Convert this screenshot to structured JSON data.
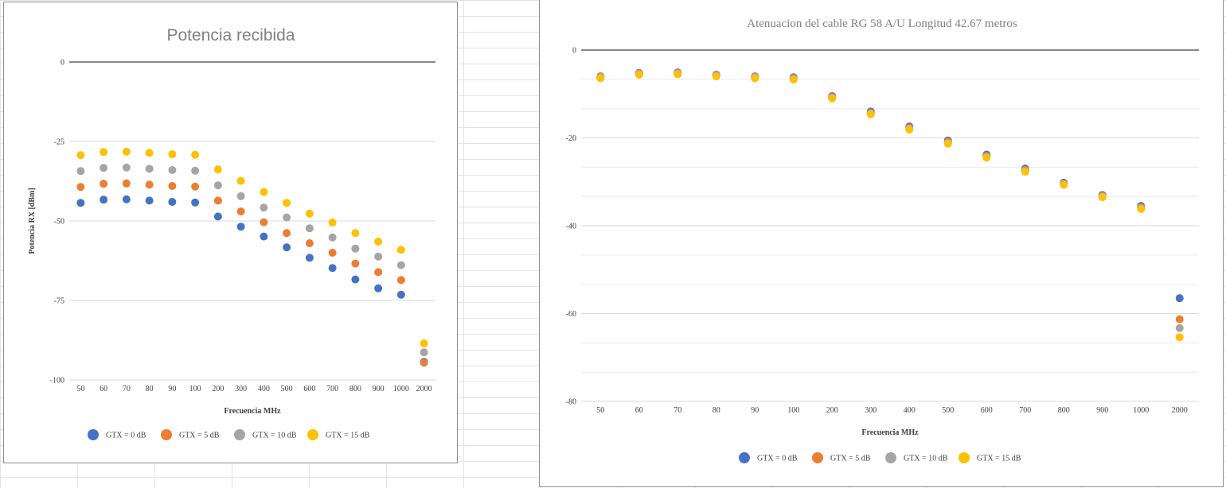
{
  "chart_data": [
    {
      "type": "scatter",
      "title": "Potencia recibida",
      "xlabel": "Frecuencia MHz",
      "ylabel": "Potencia RX [dBm]",
      "ylim": [
        -100,
        0
      ],
      "yticks": [
        "0",
        "-25",
        "-50",
        "-75",
        "-100"
      ],
      "ytick_values": [
        0,
        -25,
        -50,
        -75,
        -100
      ],
      "categories": [
        "50",
        "60",
        "70",
        "80",
        "90",
        "100",
        "200",
        "300",
        "400",
        "500",
        "600",
        "700",
        "800",
        "900",
        "1000",
        "2000"
      ],
      "legend_position": "bottom",
      "grid": true,
      "series": [
        {
          "name": "GTX = 0 dB",
          "color": "#4472c4",
          "values": [
            -44.3,
            -43.3,
            -43.2,
            -43.6,
            -44,
            -44.2,
            -48.6,
            -51.8,
            -54.9,
            -58.3,
            -61.6,
            -64.8,
            -68.4,
            -71.2,
            -73.2,
            -94.3
          ]
        },
        {
          "name": "GTX = 5 dB",
          "color": "#ed7d31",
          "values": [
            -39.3,
            -38.3,
            -38.2,
            -38.6,
            -39,
            -39.2,
            -43.6,
            -47,
            -50.4,
            -53.8,
            -57,
            -60,
            -63.4,
            -66.1,
            -68.6,
            -94.6
          ]
        },
        {
          "name": "GTX = 10 dB",
          "color": "#a5a5a5",
          "values": [
            -34.3,
            -33.3,
            -33.2,
            -33.6,
            -34,
            -34.2,
            -38.8,
            -42.2,
            -45.8,
            -48.9,
            -52.3,
            -55.2,
            -58.7,
            -61.2,
            -63.9,
            -91.3
          ]
        },
        {
          "name": "GTX = 15 dB",
          "color": "#ffc000",
          "values": [
            -29.3,
            -28.3,
            -28.2,
            -28.6,
            -29,
            -29.2,
            -33.8,
            -37.4,
            -40.9,
            -44.3,
            -47.7,
            -50.5,
            -53.8,
            -56.5,
            -59.1,
            -88.5
          ]
        }
      ]
    },
    {
      "type": "scatter",
      "title": "Atenuacion del cable RG 58 A/U Longitud 42.67 metros",
      "xlabel": "Frecuencia MHz",
      "ylabel": "",
      "ylim": [
        -80,
        0
      ],
      "yticks": [
        "0",
        "-20",
        "-40",
        "-60",
        "-80"
      ],
      "ytick_values": [
        0,
        -20,
        -40,
        -60,
        -80
      ],
      "categories": [
        "50",
        "60",
        "70",
        "80",
        "90",
        "100",
        "200",
        "300",
        "400",
        "500",
        "600",
        "700",
        "800",
        "900",
        "1000",
        "2000"
      ],
      "legend_position": "bottom",
      "grid": true,
      "series": [
        {
          "name": "GTX = 0 dB",
          "color": "#4472c4",
          "values": [
            -6,
            -5.2,
            -5.1,
            -5.6,
            -6,
            -6.2,
            -10.5,
            -14,
            -17.4,
            -20.6,
            -23.8,
            -27,
            -30.2,
            -33,
            -35.5,
            -56.5
          ]
        },
        {
          "name": "GTX = 5 dB",
          "color": "#ed7d31",
          "values": [
            -6.1,
            -5.3,
            -5.2,
            -5.7,
            -6.1,
            -6.4,
            -10.7,
            -14.3,
            -17.7,
            -20.9,
            -24.1,
            -27.3,
            -30.4,
            -33.2,
            -35.8,
            -61.3
          ]
        },
        {
          "name": "GTX = 10 dB",
          "color": "#a5a5a5",
          "values": [
            -6.2,
            -5.4,
            -5.3,
            -5.8,
            -6.2,
            -6.5,
            -10.8,
            -14.4,
            -17.9,
            -21.1,
            -24.3,
            -27.5,
            -30.5,
            -33.3,
            -36,
            -63.3
          ]
        },
        {
          "name": "GTX = 15 dB",
          "color": "#ffc000",
          "values": [
            -6.4,
            -5.6,
            -5.5,
            -6,
            -6.4,
            -6.7,
            -11,
            -14.6,
            -18.1,
            -21.3,
            -24.5,
            -27.7,
            -30.7,
            -33.5,
            -36.2,
            -65.4
          ]
        }
      ]
    }
  ]
}
